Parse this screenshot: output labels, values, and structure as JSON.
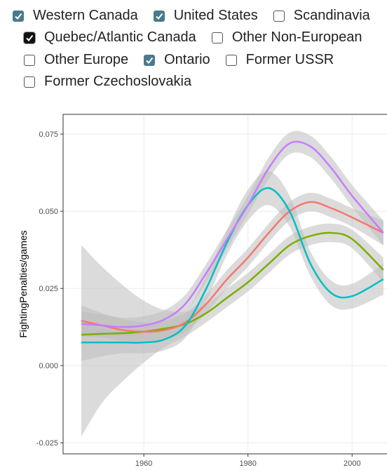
{
  "checkboxes": [
    {
      "label": "Western Canada",
      "checked": true
    },
    {
      "label": "United States",
      "checked": true
    },
    {
      "label": "Scandinavia",
      "checked": false
    },
    {
      "label": "Quebec/Atlantic Canada",
      "checked": true
    },
    {
      "label": "Other Non-European",
      "checked": false
    },
    {
      "label": "Other Europe",
      "checked": false
    },
    {
      "label": "Ontario",
      "checked": true
    },
    {
      "label": "Former USSR",
      "checked": false
    },
    {
      "label": "Former Czechoslovakia",
      "checked": false
    }
  ],
  "chart_data": {
    "type": "line",
    "y_label": "FightingPenalties/games",
    "x": [
      1948,
      1952,
      1956,
      1960,
      1964,
      1968,
      1972,
      1976,
      1980,
      1984,
      1988,
      1992,
      1996,
      2000,
      2006
    ],
    "xlim": [
      1944.5,
      2006.7
    ],
    "xticks": [
      1960,
      1980,
      2000
    ],
    "ylim": [
      -0.0286,
      0.0814
    ],
    "yticks": [
      {
        "value": -0.025,
        "label": "-0.025"
      },
      {
        "value": 0,
        "label": "0.000"
      },
      {
        "value": 0.025,
        "label": "0.025"
      },
      {
        "value": 0.05,
        "label": "0.050"
      },
      {
        "value": 0.075,
        "label": "0.075"
      }
    ],
    "grid": true,
    "band_color": "#bdbdbd",
    "series": [
      {
        "color": "#7CAE00",
        "values": [
          0.01,
          0.0103,
          0.0105,
          0.011,
          0.012,
          0.0135,
          0.017,
          0.022,
          0.027,
          0.033,
          0.039,
          0.042,
          0.043,
          0.041,
          0.031
        ],
        "lower": [
          -0.023,
          -0.012,
          -0.005,
          0.001,
          0.006,
          0.0095,
          0.014,
          0.019,
          0.024,
          0.03,
          0.036,
          0.039,
          0.04,
          0.038,
          0.027
        ],
        "upper": [
          0.039,
          0.032,
          0.026,
          0.021,
          0.018,
          0.0175,
          0.02,
          0.025,
          0.03,
          0.036,
          0.042,
          0.045,
          0.046,
          0.044,
          0.035
        ]
      },
      {
        "color": "#F8766D",
        "values": [
          0.0145,
          0.013,
          0.0115,
          0.011,
          0.0115,
          0.014,
          0.02,
          0.028,
          0.035,
          0.043,
          0.05,
          0.053,
          0.051,
          0.048,
          0.043
        ],
        "lower": [
          0.0095,
          0.009,
          0.008,
          0.008,
          0.0085,
          0.011,
          0.017,
          0.025,
          0.032,
          0.04,
          0.047,
          0.05,
          0.048,
          0.045,
          0.039
        ],
        "upper": [
          0.0195,
          0.017,
          0.015,
          0.014,
          0.0145,
          0.017,
          0.023,
          0.031,
          0.038,
          0.046,
          0.053,
          0.056,
          0.054,
          0.051,
          0.047
        ]
      },
      {
        "color": "#00BFC4",
        "values": [
          0.0075,
          0.0075,
          0.0075,
          0.0075,
          0.0085,
          0.013,
          0.025,
          0.04,
          0.052,
          0.0575,
          0.05,
          0.033,
          0.0235,
          0.0225,
          0.028
        ],
        "lower": [
          0.0015,
          0.003,
          0.004,
          0.004,
          0.005,
          0.009,
          0.021,
          0.036,
          0.047,
          0.052,
          0.045,
          0.029,
          0.0195,
          0.0185,
          0.023
        ],
        "upper": [
          0.0135,
          0.012,
          0.011,
          0.011,
          0.012,
          0.017,
          0.029,
          0.044,
          0.057,
          0.063,
          0.055,
          0.037,
          0.0275,
          0.0265,
          0.033
        ]
      },
      {
        "color": "#C77CFF",
        "values": [
          0.0135,
          0.013,
          0.0125,
          0.013,
          0.015,
          0.02,
          0.03,
          0.041,
          0.052,
          0.064,
          0.072,
          0.071,
          0.064,
          0.055,
          0.043
        ],
        "lower": [
          0.0095,
          0.0095,
          0.0095,
          0.01,
          0.012,
          0.017,
          0.027,
          0.038,
          0.049,
          0.0605,
          0.0685,
          0.0675,
          0.0605,
          0.0515,
          0.039
        ],
        "upper": [
          0.0175,
          0.0165,
          0.0155,
          0.016,
          0.018,
          0.023,
          0.033,
          0.044,
          0.055,
          0.0675,
          0.0755,
          0.0745,
          0.0675,
          0.0585,
          0.047
        ]
      }
    ]
  }
}
